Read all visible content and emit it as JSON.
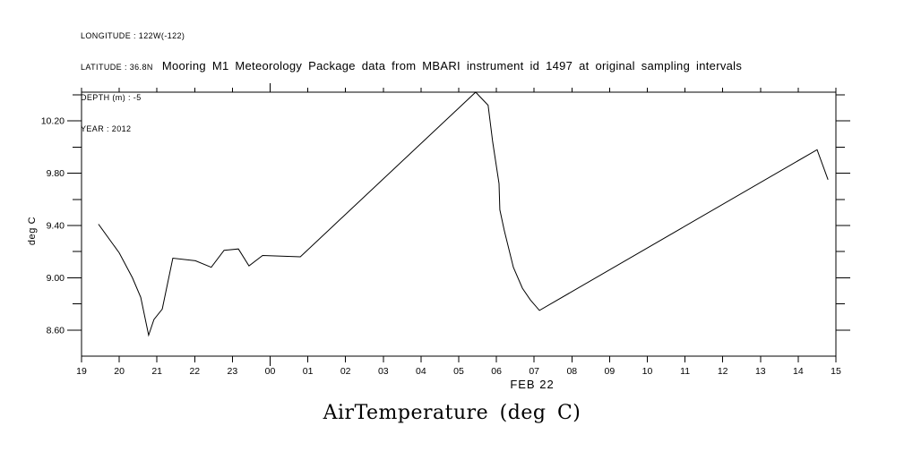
{
  "meta": {
    "lines": [
      "LONGITUDE : 122W(-122)",
      "LATITUDE : 36.8N",
      "DEPTH (m) : -5",
      "YEAR : 2012"
    ]
  },
  "header": {
    "title": "Mooring M1 Meteorology Package data from MBARI instrument id 1497 at original sampling intervals"
  },
  "chart_data": {
    "type": "line",
    "title": "AirTemperature (deg C)",
    "ylabel": "deg C",
    "date_label": "FEB 22",
    "line_color": "#000000",
    "background_color": "#ffffff",
    "grid": false,
    "legend": false,
    "xlim": [
      19,
      39
    ],
    "ylim": [
      8.4,
      10.42
    ],
    "x_major_tick": 24,
    "x_ticks": [
      {
        "t": 19,
        "label": "19"
      },
      {
        "t": 20,
        "label": "20"
      },
      {
        "t": 21,
        "label": "21"
      },
      {
        "t": 22,
        "label": "22"
      },
      {
        "t": 23,
        "label": "23"
      },
      {
        "t": 24,
        "label": "00"
      },
      {
        "t": 25,
        "label": "01"
      },
      {
        "t": 26,
        "label": "02"
      },
      {
        "t": 27,
        "label": "03"
      },
      {
        "t": 28,
        "label": "04"
      },
      {
        "t": 29,
        "label": "05"
      },
      {
        "t": 30,
        "label": "06"
      },
      {
        "t": 31,
        "label": "07"
      },
      {
        "t": 32,
        "label": "08"
      },
      {
        "t": 33,
        "label": "09"
      },
      {
        "t": 34,
        "label": "10"
      },
      {
        "t": 35,
        "label": "11"
      },
      {
        "t": 36,
        "label": "12"
      },
      {
        "t": 37,
        "label": "13"
      },
      {
        "t": 38,
        "label": "14"
      },
      {
        "t": 39,
        "label": "15"
      }
    ],
    "y_minor_ticks": [
      8.6,
      8.8,
      9.0,
      9.2,
      9.4,
      9.6,
      9.8,
      10.0,
      10.2,
      10.4
    ],
    "y_major_ticks": [
      {
        "v": 8.6,
        "label": "8.60"
      },
      {
        "v": 9.0,
        "label": "9.00"
      },
      {
        "v": 9.4,
        "label": "9.40"
      },
      {
        "v": 9.8,
        "label": "9.80"
      },
      {
        "v": 10.2,
        "label": "10.20"
      }
    ],
    "series": [
      {
        "name": "AirTemperature",
        "points": [
          [
            19.45,
            9.41
          ],
          [
            20.0,
            9.19
          ],
          [
            20.35,
            9.0
          ],
          [
            20.57,
            8.85
          ],
          [
            20.78,
            8.56
          ],
          [
            20.92,
            8.68
          ],
          [
            21.14,
            8.76
          ],
          [
            21.42,
            9.15
          ],
          [
            22.02,
            9.13
          ],
          [
            22.44,
            9.08
          ],
          [
            22.78,
            9.21
          ],
          [
            23.16,
            9.22
          ],
          [
            23.44,
            9.09
          ],
          [
            23.8,
            9.17
          ],
          [
            24.8,
            9.16
          ],
          [
            29.45,
            10.42
          ],
          [
            29.78,
            10.32
          ],
          [
            29.9,
            10.04
          ],
          [
            30.07,
            9.72
          ],
          [
            30.09,
            9.52
          ],
          [
            30.21,
            9.36
          ],
          [
            30.45,
            9.08
          ],
          [
            30.69,
            8.92
          ],
          [
            30.9,
            8.83
          ],
          [
            31.14,
            8.75
          ],
          [
            38.5,
            9.98
          ],
          [
            38.79,
            9.75
          ]
        ]
      }
    ]
  }
}
